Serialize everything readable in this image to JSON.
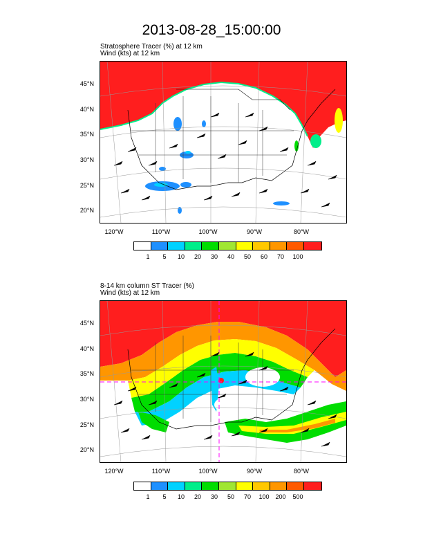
{
  "title": "2013-08-28_15:00:00",
  "panel1": {
    "line1": "Stratosphere Tracer   (%)     at   12 km",
    "line2": "Wind   (kts)     at   12 km",
    "lat_labels": [
      "45°N",
      "40°N",
      "35°N",
      "30°N",
      "25°N",
      "20°N"
    ],
    "lon_labels": [
      "120°W",
      "110°W",
      "100°W",
      "90°W",
      "80°W"
    ],
    "colorbar_labels": [
      "1",
      "5",
      "10",
      "20",
      "30",
      "40",
      "50",
      "60",
      "70",
      "100"
    ]
  },
  "panel2": {
    "line1": "8-14 km column ST Tracer   (%)",
    "line2": "Wind   (kts)     at   12 km",
    "lat_labels": [
      "45°N",
      "40°N",
      "35°N",
      "30°N",
      "25°N",
      "20°N"
    ],
    "lon_labels": [
      "120°W",
      "110°W",
      "100°W",
      "90°W",
      "80°W"
    ],
    "colorbar_labels": [
      "1",
      "5",
      "10",
      "20",
      "30",
      "50",
      "70",
      "100",
      "200",
      "500"
    ]
  },
  "colorbar_colors": [
    "#ffffff",
    "#1e90ff",
    "#00d2ff",
    "#00ee8a",
    "#00dd00",
    "#a0e632",
    "#ffff00",
    "#ffc800",
    "#ff9600",
    "#ff5a00",
    "#ff1e1e"
  ]
}
